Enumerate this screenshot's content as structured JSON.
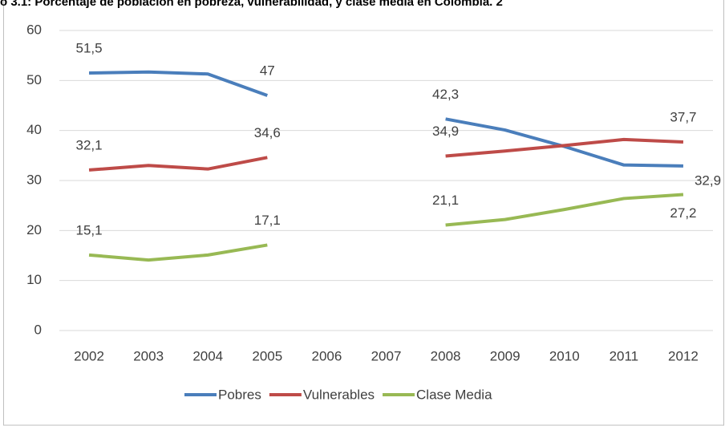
{
  "chart_data": {
    "type": "line",
    "title": "o 3.1: Porcentaje de población en pobreza, vulnerabilidad, y clase media en Colombia. 2",
    "categories": [
      "2002",
      "2003",
      "2004",
      "2005",
      "2006",
      "2007",
      "2008",
      "2009",
      "2010",
      "2011",
      "2012"
    ],
    "series": [
      {
        "name": "Pobres",
        "color": "#4a7ebb",
        "values": [
          51.5,
          51.7,
          51.3,
          47,
          null,
          null,
          42.3,
          40.1,
          36.8,
          33.1,
          32.9
        ],
        "value_labels": [
          "51,5",
          null,
          null,
          "47",
          null,
          null,
          "42,3",
          null,
          null,
          null,
          "32,9"
        ]
      },
      {
        "name": "Vulnerables",
        "color": "#be4b48",
        "values": [
          32.1,
          33.0,
          32.3,
          34.6,
          null,
          null,
          34.9,
          35.9,
          37.0,
          38.2,
          37.7
        ],
        "value_labels": [
          "32,1",
          null,
          null,
          "34,6",
          null,
          null,
          "34,9",
          null,
          null,
          null,
          "37,7"
        ]
      },
      {
        "name": "Clase Media",
        "color": "#98b954",
        "values": [
          15.1,
          14.1,
          15.1,
          17.1,
          null,
          null,
          21.1,
          22.2,
          24.2,
          26.4,
          27.2
        ],
        "value_labels": [
          "15,1",
          null,
          null,
          "17,1",
          null,
          null,
          "21,1",
          null,
          null,
          null,
          "27,2"
        ]
      }
    ],
    "ylim": [
      0,
      60
    ],
    "yticks": [
      0,
      10,
      20,
      30,
      40,
      50,
      60
    ],
    "grid": true,
    "legend": "bottom"
  }
}
